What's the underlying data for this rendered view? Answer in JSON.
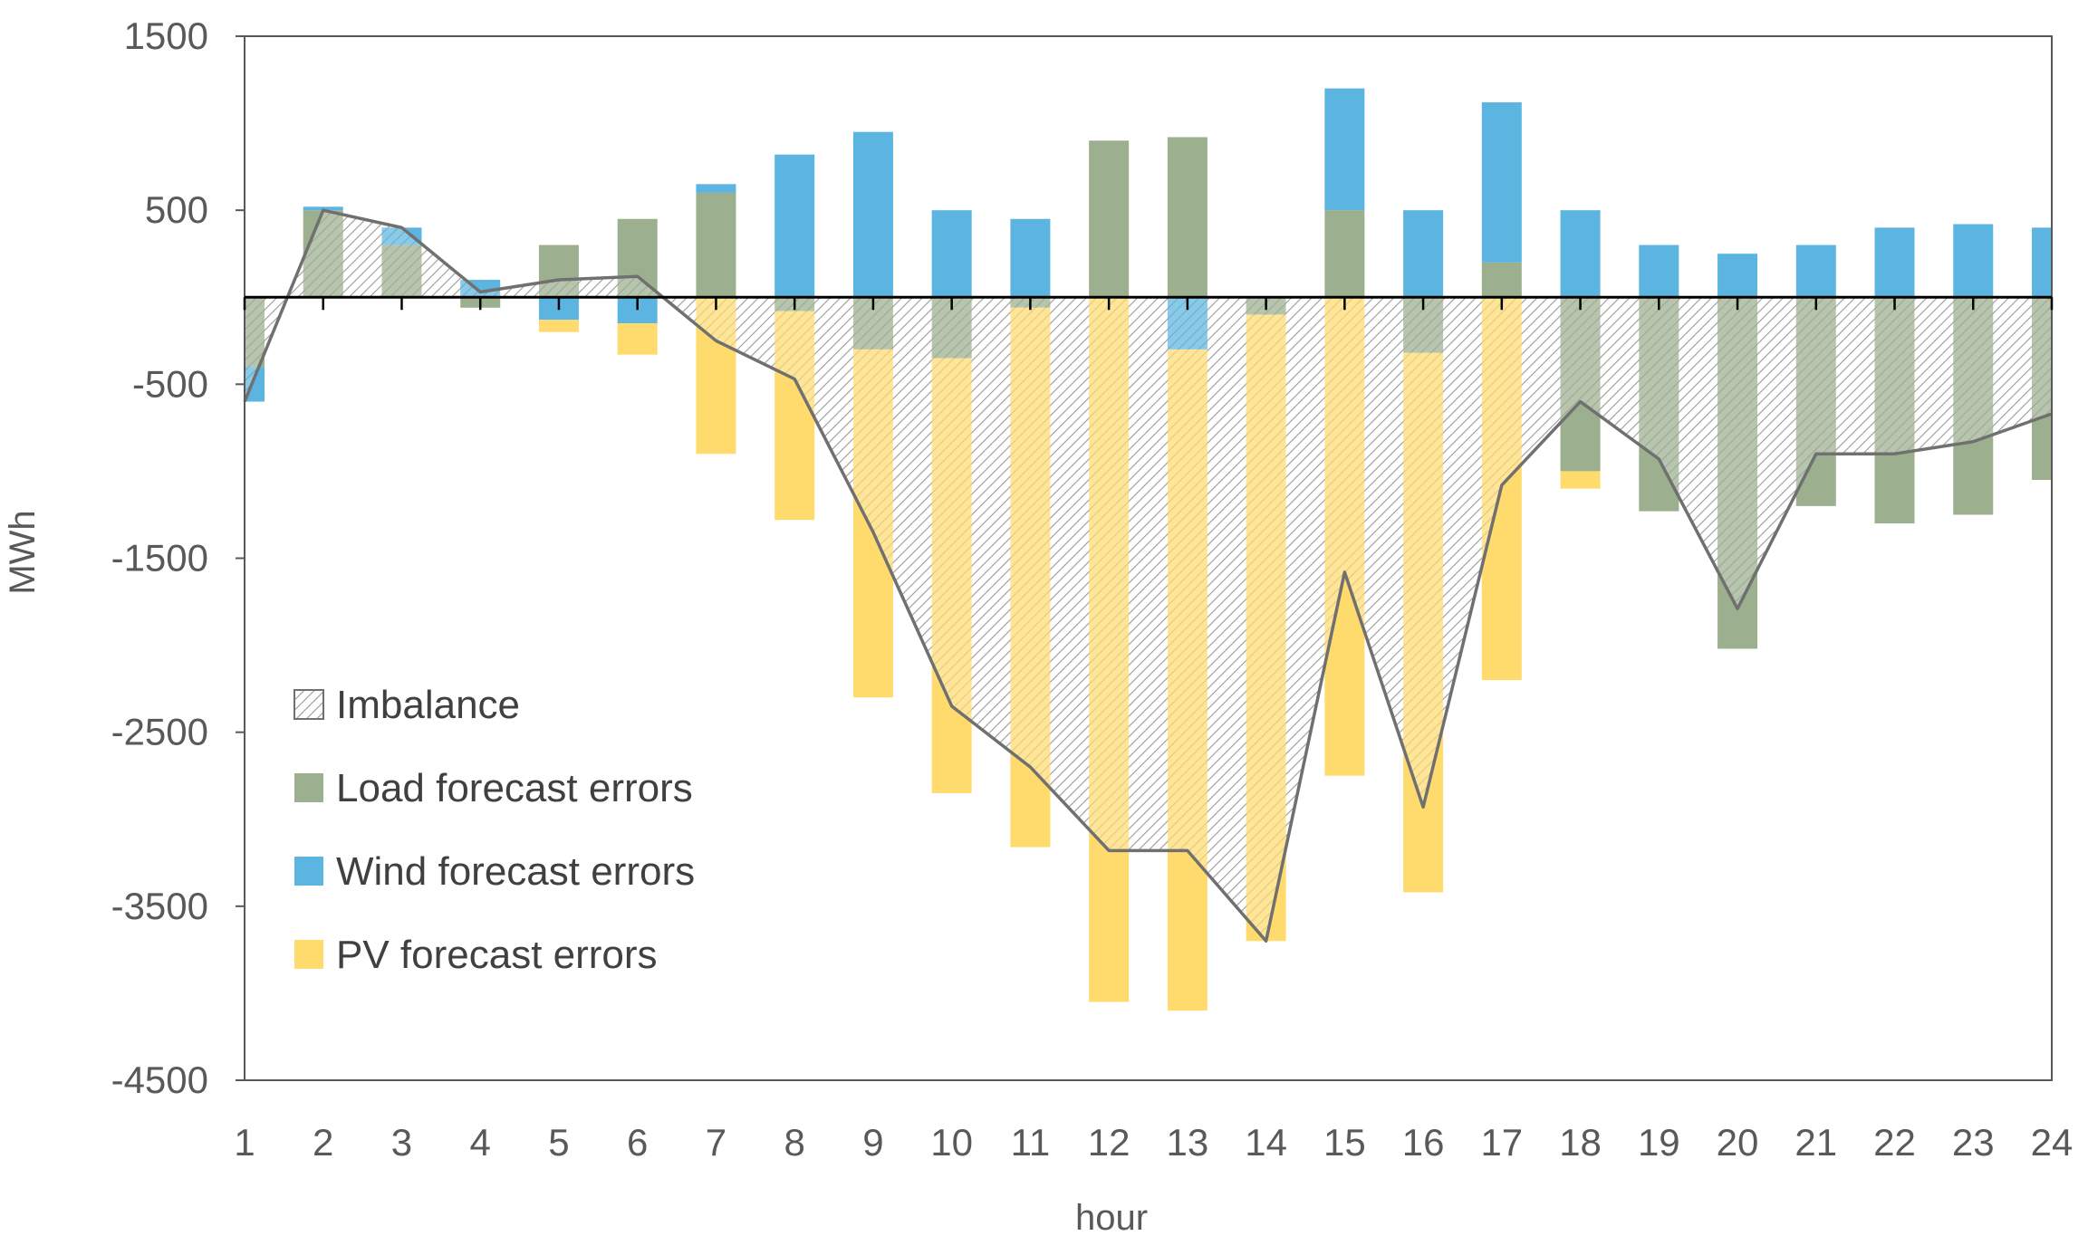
{
  "colors": {
    "load": "#9caf8e",
    "wind": "#5bb5e0",
    "pv": "#ffdb6e",
    "imbalance_line": "#707070",
    "hatch": "#9a9a9a",
    "axis": "#000000",
    "frame": "#595959"
  },
  "chart_data": {
    "type": "bar",
    "subtype": "stacked-diverging-bar-with-area",
    "title": "",
    "xlabel": "hour",
    "ylabel": "MWh",
    "ylim": [
      -4500,
      1500
    ],
    "yticks": [
      1500,
      500,
      -500,
      -1500,
      -2500,
      -3500,
      -4500
    ],
    "ytick_labels": [
      "1500",
      "500",
      "-500",
      "-1500",
      "-2500",
      "-3500",
      "-4500"
    ],
    "categories": [
      "1",
      "2",
      "3",
      "4",
      "5",
      "6",
      "7",
      "8",
      "9",
      "10",
      "11",
      "12",
      "13",
      "14",
      "15",
      "16",
      "17",
      "18",
      "19",
      "20",
      "21",
      "22",
      "23",
      "24"
    ],
    "legend_position": "lower-left",
    "series": [
      {
        "key": "load",
        "name": "Load forecast errors",
        "values": [
          -400,
          500,
          300,
          -60,
          300,
          450,
          600,
          -80,
          -300,
          -350,
          -60,
          900,
          920,
          -100,
          500,
          -320,
          200,
          -1000,
          -1230,
          -2020,
          -1200,
          -1300,
          -1250,
          -1050
        ]
      },
      {
        "key": "wind",
        "name": "Wind forecast errors",
        "values": [
          -200,
          20,
          100,
          100,
          -130,
          -150,
          50,
          820,
          950,
          500,
          450,
          0,
          -300,
          0,
          700,
          500,
          920,
          500,
          300,
          250,
          300,
          400,
          420,
          400
        ]
      },
      {
        "key": "pv",
        "name": "PV forecast errors",
        "values": [
          0,
          0,
          0,
          0,
          -70,
          -180,
          -900,
          -1200,
          -2000,
          -2500,
          -3100,
          -4050,
          -3800,
          -3600,
          -2750,
          -3100,
          -2200,
          -100,
          0,
          0,
          0,
          0,
          0,
          0
        ]
      },
      {
        "key": "imbalance",
        "name": "Imbalance",
        "values": [
          -600,
          500,
          400,
          30,
          100,
          120,
          -250,
          -470,
          -1350,
          -2350,
          -2700,
          -3180,
          -3180,
          -3700,
          -1580,
          -2930,
          -1080,
          -600,
          -930,
          -1790,
          -900,
          -900,
          -830,
          -670
        ]
      }
    ]
  },
  "legend": {
    "items": [
      {
        "key": "imbalance",
        "label": "Imbalance"
      },
      {
        "key": "load",
        "label": "Load forecast errors"
      },
      {
        "key": "wind",
        "label": "Wind forecast errors"
      },
      {
        "key": "pv",
        "label": "PV forecast errors"
      }
    ]
  }
}
